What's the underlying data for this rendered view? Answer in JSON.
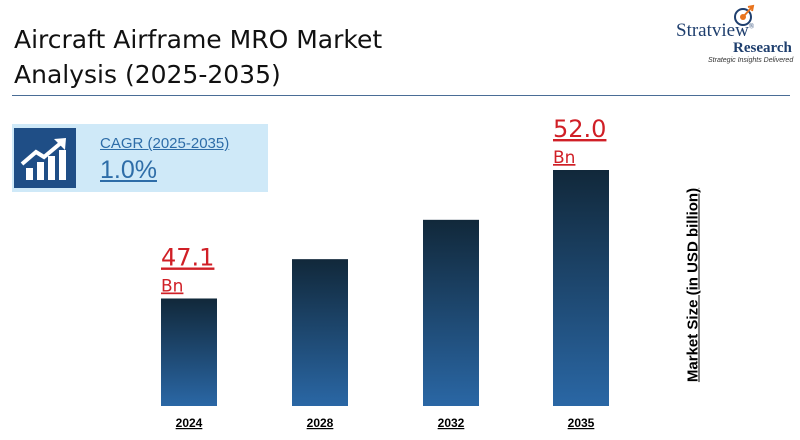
{
  "header": {
    "title_line1": "Aircraft Airframe MRO Market",
    "title_line2": "Analysis (2025-2035)"
  },
  "logo": {
    "brand": "Stratview",
    "brand_mark": "®",
    "sub": "Research",
    "tagline": "Strategic Insights Delivered",
    "color": "#1f3f6e"
  },
  "cagr": {
    "label": "CAGR (2025-2035)",
    "value": "1.0%",
    "icon": "growth-chart-icon"
  },
  "chart_data": {
    "type": "bar",
    "categories": [
      "2024",
      "2028",
      "2032",
      "2035"
    ],
    "values": [
      47.1,
      48.6,
      50.1,
      52.0
    ],
    "data_labels": [
      {
        "index": 0,
        "value": "47.1",
        "unit": "Bn"
      },
      {
        "index": 3,
        "value": "52.0",
        "unit": "Bn"
      }
    ],
    "title": "Aircraft Airframe MRO Market Analysis (2025-2035)",
    "xlabel": "",
    "ylabel": "Market Size (in USD billion)",
    "ylim": [
      43,
      53
    ],
    "grid": false,
    "legend": "none",
    "colors": {
      "bar_top": "#11283a",
      "bar_bottom": "#2a67a5",
      "label": "#d01f26"
    }
  }
}
